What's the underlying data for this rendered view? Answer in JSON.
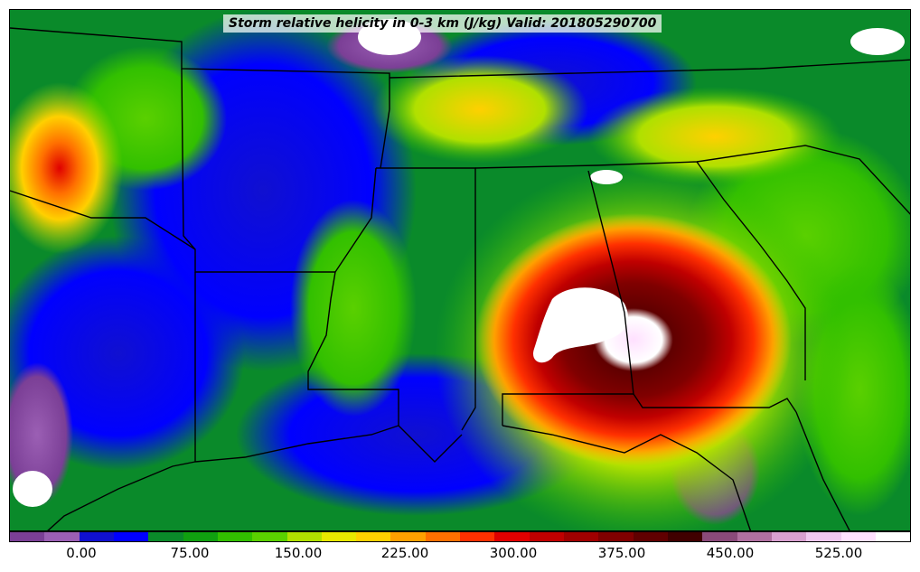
{
  "title": "Storm relative helicity in 0-3 km (J/kg) Valid: 201805290700",
  "colorbar": {
    "colors": [
      "#7b3f96",
      "#9b5fb4",
      "#1010d0",
      "#0000ff",
      "#0a8a2a",
      "#10a010",
      "#32c000",
      "#5ad000",
      "#b0e000",
      "#e8e800",
      "#ffd000",
      "#ffa000",
      "#ff7000",
      "#ff3000",
      "#e00000",
      "#c00000",
      "#a00000",
      "#800000",
      "#600000",
      "#400000",
      "#8a4a7a",
      "#b070a0",
      "#d8a0d0",
      "#f0c8f0",
      "#ffe0ff",
      "#ffffff"
    ],
    "tick_labels": [
      "0.00",
      "75.00",
      "150.00",
      "225.00",
      "300.00",
      "375.00",
      "450.00",
      "525.00"
    ]
  },
  "map": {
    "background_color": "#0a8a2a",
    "state_border_color": "#000000"
  }
}
